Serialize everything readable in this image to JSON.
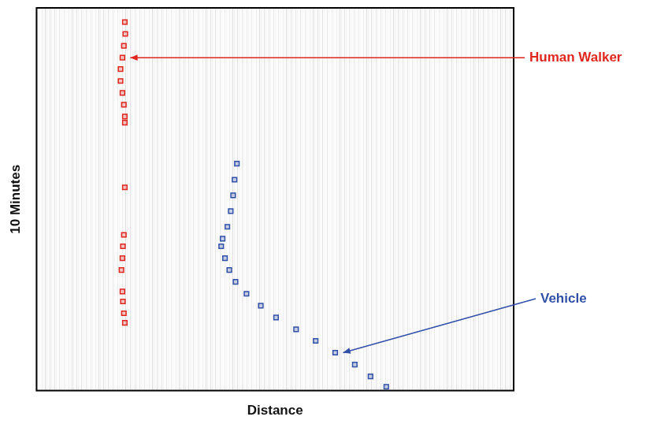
{
  "chart_data": {
    "type": "scatter",
    "x_label": "Distance",
    "y_label": "10 Minutes",
    "xlim": [
      0,
      100
    ],
    "ylim": [
      0,
      100
    ],
    "tick_labels": false,
    "grid": false,
    "series": [
      {
        "name": "Human Walker",
        "color": "#e0261e",
        "marker": "square",
        "x": [
          18.5,
          18.6,
          18.3,
          18.0,
          17.6,
          17.6,
          18.0,
          18.3,
          18.5,
          18.5,
          18.5,
          18.3,
          18.1,
          18.0,
          17.8,
          18.0,
          18.1,
          18.3,
          18.5
        ],
        "values": [
          96.3,
          93.2,
          90.1,
          87.0,
          84.0,
          80.9,
          77.8,
          74.7,
          71.6,
          70.0,
          53.1,
          40.7,
          37.7,
          34.6,
          31.5,
          25.9,
          23.3,
          20.2,
          17.7
        ]
      },
      {
        "name": "Vehicle",
        "color": "#3050a8",
        "marker": "square",
        "x": [
          42.0,
          41.5,
          41.2,
          40.7,
          40.0,
          39.0,
          38.7,
          39.5,
          40.4,
          41.7,
          44.0,
          47.0,
          50.2,
          54.4,
          58.5,
          62.6,
          66.7,
          70.0,
          73.3
        ],
        "values": [
          59.3,
          55.1,
          51.0,
          46.9,
          42.8,
          39.7,
          37.7,
          34.6,
          31.5,
          28.4,
          25.3,
          22.2,
          19.1,
          16.0,
          13.0,
          9.9,
          6.8,
          3.7,
          1.0
        ]
      }
    ]
  }
}
